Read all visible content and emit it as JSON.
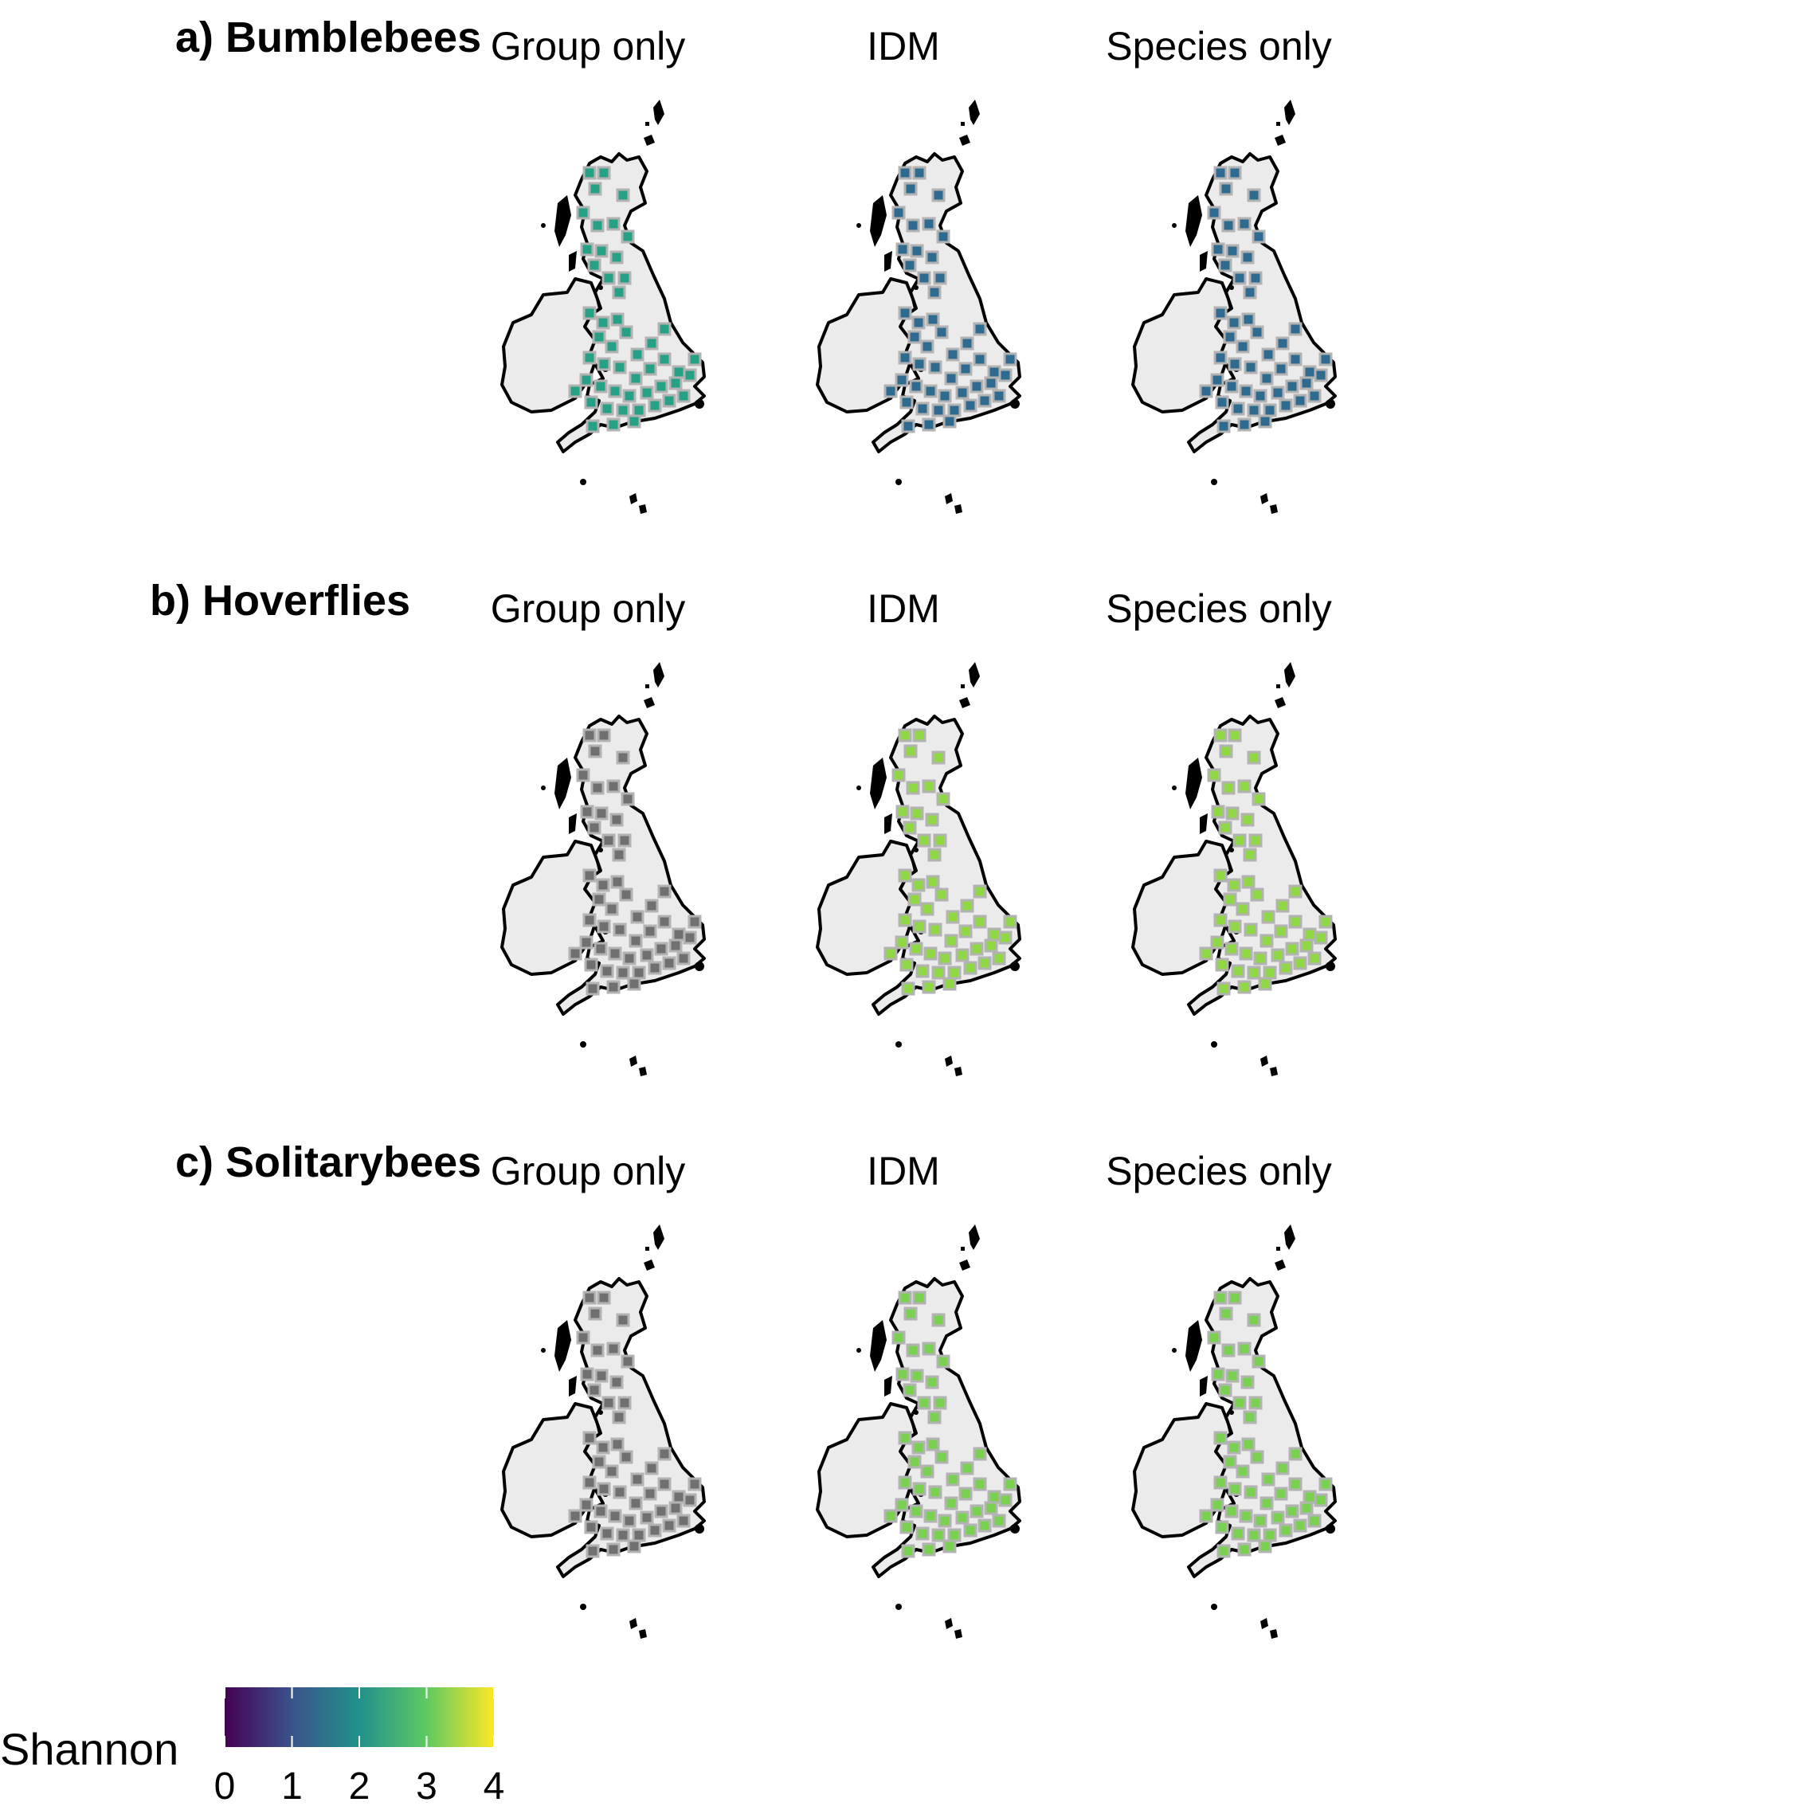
{
  "figure": {
    "rows": [
      {
        "title": "a) Bumblebees",
        "panels": [
          {
            "label": "Group only",
            "color": "#26a185"
          },
          {
            "label": "IDM",
            "color": "#2f6b8e"
          },
          {
            "label": "Species only",
            "color": "#2f6b8e"
          }
        ]
      },
      {
        "title": "b) Hoverflies",
        "panels": [
          {
            "label": "Group only",
            "color": "#707070"
          },
          {
            "label": "IDM",
            "color": "#8fd744"
          },
          {
            "label": "Species only",
            "color": "#8fd744"
          }
        ]
      },
      {
        "title": "c) Solitarybees",
        "panels": [
          {
            "label": "Group only",
            "color": "#707070"
          },
          {
            "label": "IDM",
            "color": "#7ad151"
          },
          {
            "label": "Species only",
            "color": "#7ad151"
          }
        ]
      }
    ],
    "legend": {
      "title": "Shannon",
      "ticks": [
        0,
        1,
        2,
        3,
        4
      ],
      "range": [
        0,
        4
      ],
      "colors": [
        "#440154",
        "#3b528b",
        "#21918c",
        "#5ec962",
        "#fde725"
      ]
    },
    "colors": {
      "land_fill": "#ebebeb",
      "coast_stroke": "#000000",
      "cell_border": "#b3b3b3"
    }
  }
}
